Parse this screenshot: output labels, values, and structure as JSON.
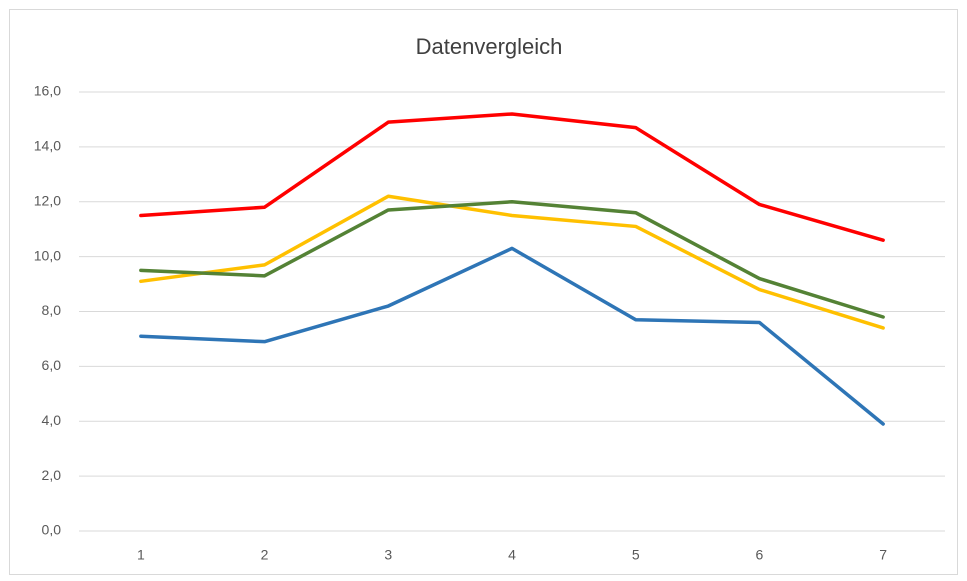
{
  "chart_data": {
    "type": "line",
    "title": "Datenvergleich",
    "categories": [
      "1",
      "2",
      "3",
      "4",
      "5",
      "6",
      "7"
    ],
    "series": [
      {
        "color": "#ff0000",
        "values": [
          11.5,
          11.8,
          14.9,
          15.2,
          14.7,
          11.9,
          10.6
        ]
      },
      {
        "color": "#ffc000",
        "values": [
          9.1,
          9.7,
          12.2,
          11.5,
          11.1,
          8.8,
          7.4
        ]
      },
      {
        "color": "#548235",
        "values": [
          9.5,
          9.3,
          11.7,
          12.0,
          11.6,
          9.2,
          7.8
        ]
      },
      {
        "color": "#2e75b6",
        "values": [
          7.1,
          6.9,
          8.2,
          10.3,
          7.7,
          7.6,
          3.9
        ]
      }
    ],
    "ylim": [
      0,
      16
    ],
    "yticks": [
      {
        "value": 0,
        "label": "0,0"
      },
      {
        "value": 2,
        "label": "2,0"
      },
      {
        "value": 4,
        "label": "4,0"
      },
      {
        "value": 6,
        "label": "6,0"
      },
      {
        "value": 8,
        "label": "8,0"
      },
      {
        "value": 10,
        "label": "10,0"
      },
      {
        "value": 12,
        "label": "12,0"
      },
      {
        "value": 14,
        "label": "14,0"
      },
      {
        "value": 16,
        "label": "16,0"
      }
    ],
    "grid": true
  }
}
